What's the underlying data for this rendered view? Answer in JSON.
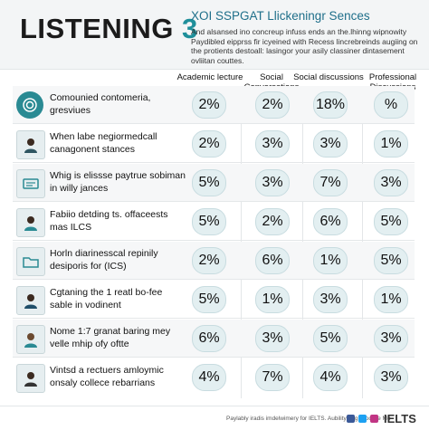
{
  "header": {
    "title": "LISTENING",
    "title_number": "3",
    "subtitle": "XOI SSPGAT Llickeningr Sences",
    "description": "And alsansed ino concreup infuss ends an the.lhinng wipnowity Paydibled eipprss fir icyeined with Recess lincrebreinds augiing on the protients destoall: lasingor your asily classiner dintasement ovliitan couttes."
  },
  "columns": [
    {
      "label": "Academic lecture"
    },
    {
      "label": "Social Conversations"
    },
    {
      "label": "Social discussions"
    },
    {
      "label": "Professional Discussions"
    }
  ],
  "rows": [
    {
      "label": "Comounied contomeria, gresviues",
      "icon": "target-icon",
      "values": [
        "2%",
        "2%",
        "18%",
        "%"
      ]
    },
    {
      "label": "When labe negiormedcall canagonent stances",
      "icon": "person-icon",
      "values": [
        "2%",
        "3%",
        "3%",
        "1%"
      ]
    },
    {
      "label": "Whig is elissse paytrue sobiman in willy jances",
      "icon": "document-icon",
      "values": [
        "5%",
        "3%",
        "7%",
        "3%"
      ]
    },
    {
      "label": "Fabiio detding ts. offaceests mas ILCS",
      "icon": "person-icon",
      "values": [
        "5%",
        "2%",
        "6%",
        "5%"
      ]
    },
    {
      "label": "Horln diarinesscal repinily desiporis for (ICS)",
      "icon": "folder-icon",
      "values": [
        "2%",
        "6%",
        "1%",
        "5%"
      ]
    },
    {
      "label": "Cgtaning the 1 reatl bo-fee sable in vodinent",
      "icon": "person-icon",
      "values": [
        "5%",
        "1%",
        "3%",
        "1%"
      ]
    },
    {
      "label": "Nome 1:7 granat baring mey velle mhip ofy oftte",
      "icon": "person-icon",
      "values": [
        "6%",
        "3%",
        "5%",
        "3%"
      ]
    },
    {
      "label": "Vintsd a rectuers amloymic onsaly collece rebarrians",
      "icon": "person-icon",
      "values": [
        "4%",
        "7%",
        "4%",
        "3%"
      ]
    }
  ],
  "footer": {
    "text": "Paylably iradis imdelwimery for IELTS. Aubility ong Procsse Mo",
    "brand": "IELTS"
  },
  "colors": {
    "accent": "#1f8f9a",
    "pill_bg": "#e3eff1",
    "header_bg": "#f3f5f6"
  }
}
